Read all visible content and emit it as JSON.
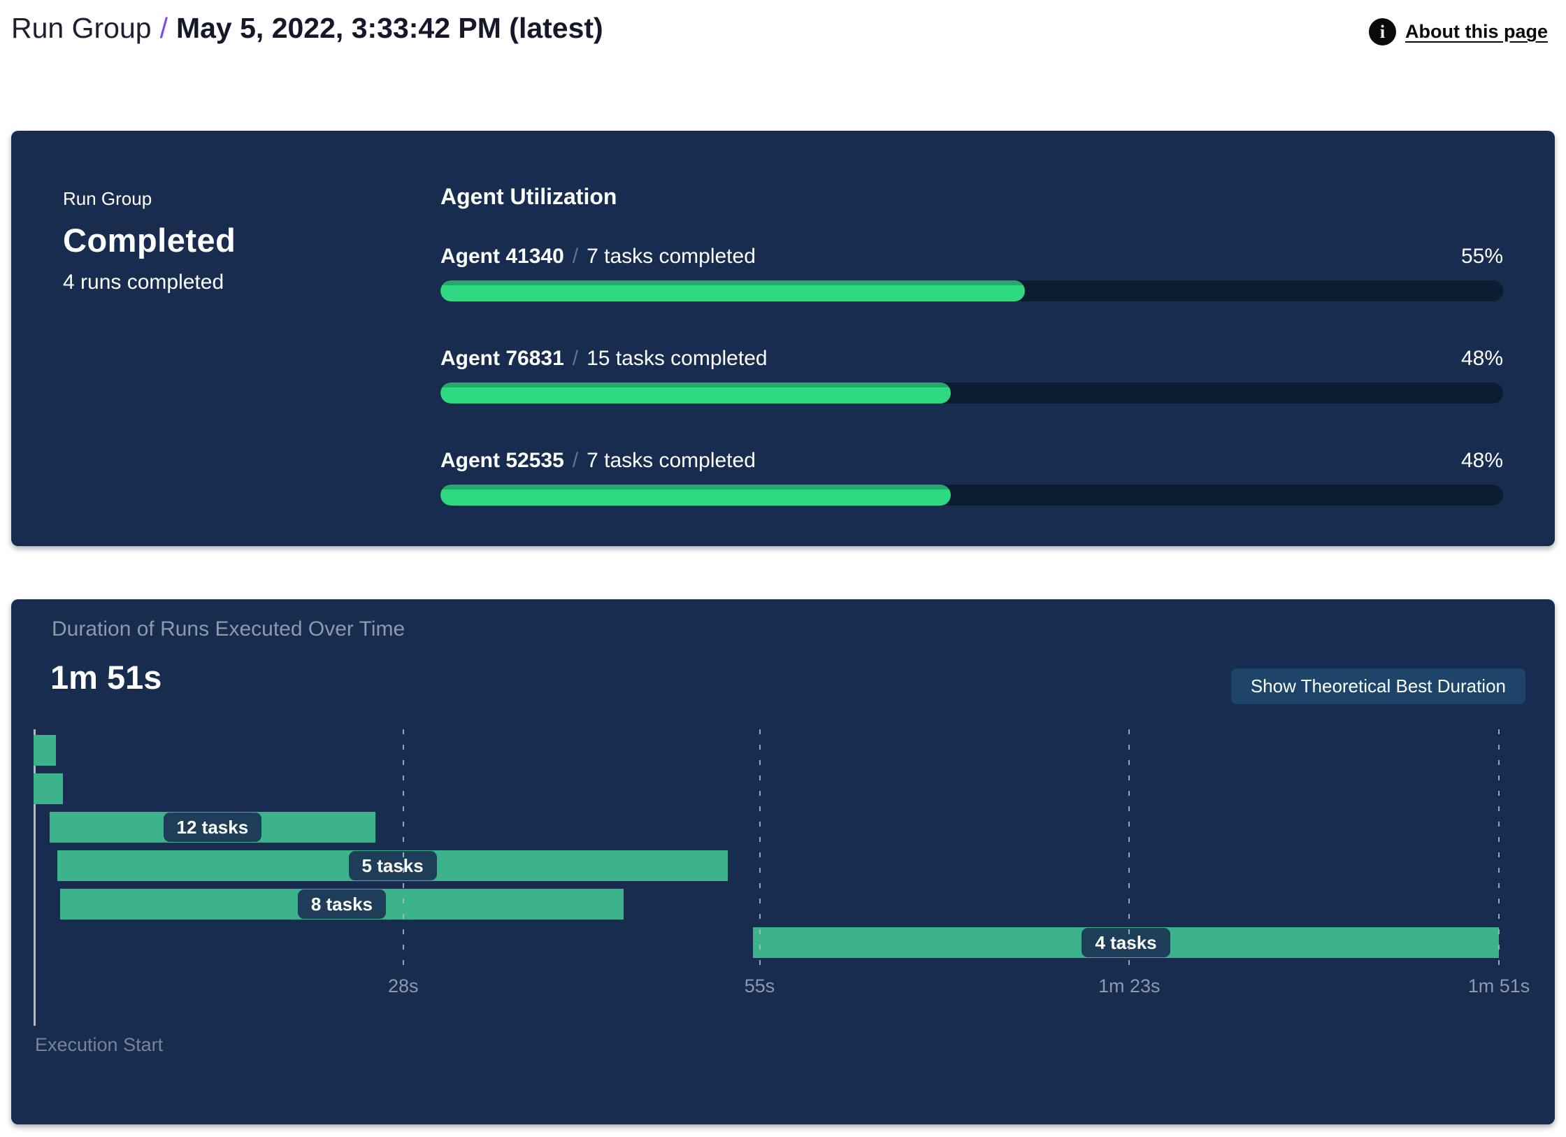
{
  "header": {
    "breadcrumb_root": "Run Group",
    "separator": "/",
    "title": "May 5, 2022, 3:33:42 PM (latest)",
    "about_label": "About this page",
    "info_icon_glyph": "i"
  },
  "summary": {
    "label": "Run Group",
    "status": "Completed",
    "runs": "4 runs completed"
  },
  "utilization": {
    "title": "Agent Utilization",
    "agents": [
      {
        "name": "Agent 41340",
        "separator": "/",
        "tasks": "7 tasks completed",
        "percent": 55,
        "percent_label": "55%"
      },
      {
        "name": "Agent 76831",
        "separator": "/",
        "tasks": "15 tasks completed",
        "percent": 48,
        "percent_label": "48%"
      },
      {
        "name": "Agent 52535",
        "separator": "/",
        "tasks": "7 tasks completed",
        "percent": 48,
        "percent_label": "48%"
      }
    ]
  },
  "duration": {
    "title": "Duration of Runs Executed Over Time",
    "total": "1m 51s",
    "button_label": "Show Theoretical Best Duration",
    "execution_start": "Execution Start"
  },
  "chart_data": {
    "type": "bar",
    "subtype": "gantt",
    "title": "Duration of Runs Executed Over Time",
    "total_duration_label": "1m 51s",
    "xlabel": "Execution Start",
    "x_unit": "seconds",
    "xlim": [
      0,
      111
    ],
    "grid": true,
    "ticks": [
      {
        "t": 28,
        "label": "28s"
      },
      {
        "t": 55,
        "label": "55s"
      },
      {
        "t": 83,
        "label": "1m 23s"
      },
      {
        "t": 111,
        "label": "1m 51s"
      }
    ],
    "rows": [
      {
        "start": 0,
        "end": 1.7,
        "label": ""
      },
      {
        "start": 0,
        "end": 2.2,
        "label": ""
      },
      {
        "start": 1.2,
        "end": 25.9,
        "label": "12 tasks"
      },
      {
        "start": 1.8,
        "end": 52.6,
        "label": "5 tasks"
      },
      {
        "start": 2.0,
        "end": 44.7,
        "label": "8 tasks"
      },
      {
        "start": 54.5,
        "end": 111,
        "label": "4 tasks"
      }
    ]
  },
  "colors": {
    "card_bg": "#172c4e",
    "progress_fill": "#2fd982",
    "progress_fill_edge": "#28a76b",
    "progress_track": "#0c1c31",
    "gantt_bar": "#3db38c",
    "pill_bg": "#1d3d58",
    "button_bg": "#1d4569",
    "breadcrumb_slash": "#7a4bf5",
    "muted_text": "#8d99ad",
    "grid_line": "#b0bac8"
  }
}
